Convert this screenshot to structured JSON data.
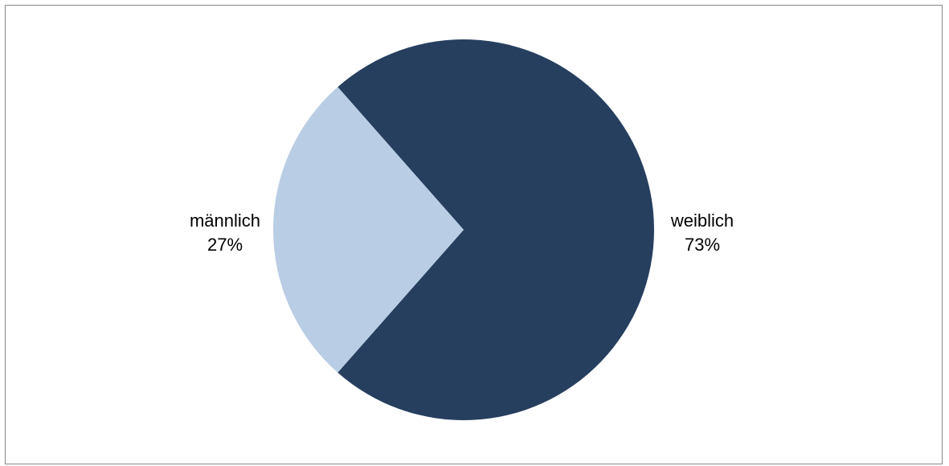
{
  "chart_data": {
    "type": "pie",
    "title": "",
    "slices": [
      {
        "label": "weiblich",
        "value": 73,
        "value_label": "73%",
        "color": "#263f5f"
      },
      {
        "label": "männlich",
        "value": 27,
        "value_label": "27%",
        "color": "#b9cde4"
      }
    ]
  }
}
